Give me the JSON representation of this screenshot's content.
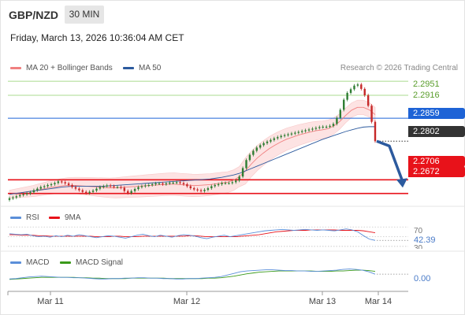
{
  "header": {
    "symbol": "GBP/NZD",
    "interval": "30 MIN",
    "datetime": "Friday, March 13, 2026 10:36:04 AM CET"
  },
  "legend": {
    "ma20_label": "MA 20 + Bollinger Bands",
    "ma50_label": "MA 50",
    "credit": "Research © 2026 Trading Central"
  },
  "colors": {
    "ma20": "#f08080",
    "ma50": "#2c5a9e",
    "bands": "#fde3e3",
    "candle_up": "#2e7d32",
    "candle_down": "#c62828",
    "resistance": "#8fcf6a",
    "pivot": "#1e63d6",
    "support": "#e8121a",
    "rsi": "#5b8fd9",
    "rsi_ma": "#e8121a",
    "macd": "#5b8fd9",
    "macd_signal": "#3a9a1a"
  },
  "levels": {
    "r2": "2.2951",
    "r1": "2.2916",
    "pivot": "2.2859",
    "last": "2.2802",
    "s1": "2.2706",
    "s2": "2.2672"
  },
  "rsi": {
    "label": "RSI",
    "ma_label": "9MA",
    "overbought": "70",
    "value": "42.39",
    "oversold": "30"
  },
  "macd": {
    "label": "MACD",
    "signal_label": "MACD Signal",
    "value": "0.00"
  },
  "xaxis": [
    "Mar 11",
    "Mar 12",
    "Mar 13",
    "Mar 14"
  ],
  "chart_data": {
    "type": "candlestick",
    "price_range": [
      2.264,
      2.2965
    ],
    "closes": [
      2.266,
      2.2662,
      2.2665,
      2.2668,
      2.267,
      2.2672,
      2.2675,
      2.268,
      2.2684,
      2.2688,
      2.269,
      2.2693,
      2.2695,
      2.2698,
      2.2702,
      2.27,
      2.2697,
      2.2693,
      2.2688,
      2.2684,
      2.268,
      2.2676,
      2.2673,
      2.2676,
      2.2679,
      2.2684,
      2.2688,
      2.269,
      2.2692,
      2.269,
      2.2688,
      2.2688,
      2.2686,
      2.2678,
      2.2673,
      2.2678,
      2.2683,
      2.2688,
      2.269,
      2.2692,
      2.2693,
      2.2695,
      2.2697,
      2.2697,
      2.2695,
      2.2697,
      2.2699,
      2.2699,
      2.27,
      2.2698,
      2.2695,
      2.269,
      2.2685,
      2.2682,
      2.268,
      2.2678,
      2.2681,
      2.2685,
      2.269,
      2.2693,
      2.2695,
      2.2698,
      2.2698,
      2.2698,
      2.27,
      2.2704,
      2.2714,
      2.2735,
      2.2755,
      2.2768,
      2.2778,
      2.2786,
      2.2792,
      2.2797,
      2.2801,
      2.2805,
      2.2809,
      2.2812,
      2.2815,
      2.2817,
      2.2819,
      2.2821,
      2.2823,
      2.2825,
      2.2827,
      2.2829,
      2.2831,
      2.2833,
      2.2835,
      2.2837,
      2.2838,
      2.2838,
      2.284,
      2.2845,
      2.286,
      2.288,
      2.2905,
      2.2922,
      2.2931,
      2.294,
      2.2943,
      2.2932,
      2.2916,
      2.289,
      2.285,
      2.2802
    ],
    "projection": [
      2.2802,
      2.279,
      2.2706
    ],
    "ma20": [
      2.267,
      2.2672,
      2.2674,
      2.2676,
      2.2678,
      2.2681,
      2.2684,
      2.2687,
      2.2689,
      2.2691,
      2.2692,
      2.2692,
      2.2691,
      2.269,
      2.2689,
      2.2688,
      2.2687,
      2.2686,
      2.2686,
      2.2687,
      2.2688,
      2.2689,
      2.269,
      2.2691,
      2.2692,
      2.2693,
      2.2694,
      2.2695,
      2.2695,
      2.2694,
      2.2693,
      2.2692,
      2.2692,
      2.2693,
      2.2694,
      2.2696,
      2.2698,
      2.27,
      2.2705,
      2.2714,
      2.2728,
      2.2745,
      2.276,
      2.2772,
      2.2783,
      2.2792,
      2.28,
      2.2807,
      2.2812,
      2.2817,
      2.2821,
      2.2825,
      2.2828,
      2.283,
      2.2833,
      2.284,
      2.2851,
      2.2866,
      2.2879,
      2.2886,
      2.2886,
      2.288,
      2.2868
    ],
    "ma50": [
      2.267,
      2.2672,
      2.2674,
      2.2676,
      2.2678,
      2.268,
      2.2682,
      2.2684,
      2.2686,
      2.2688,
      2.2689,
      2.269,
      2.269,
      2.269,
      2.269,
      2.269,
      2.269,
      2.2691,
      2.2692,
      2.2693,
      2.2694,
      2.2695,
      2.2696,
      2.2697,
      2.2698,
      2.2699,
      2.27,
      2.2701,
      2.2702,
      2.2703,
      2.2704,
      2.2705,
      2.2706,
      2.2707,
      2.2708,
      2.271,
      2.2712,
      2.2715,
      2.2718,
      2.2722,
      2.2728,
      2.2734,
      2.274,
      2.2746,
      2.2752,
      2.2758,
      2.2764,
      2.277,
      2.2776,
      2.2782,
      2.2788,
      2.2794,
      2.28,
      2.2806,
      2.2811,
      2.2816,
      2.2821,
      2.2826,
      2.283,
      2.2834,
      2.2837,
      2.2838,
      2.2838
    ],
    "rsi_range": [
      25,
      80
    ],
    "rsi": [
      56,
      55,
      54,
      55,
      52,
      50,
      51,
      49,
      52,
      50,
      53,
      51,
      54,
      52,
      50,
      48,
      50,
      52,
      51,
      49,
      47,
      50,
      53,
      55,
      52,
      50,
      53,
      51,
      49,
      52,
      54,
      53,
      51,
      48,
      46,
      49,
      51,
      53,
      50,
      52,
      54,
      56,
      58,
      60,
      62,
      63,
      64,
      65,
      64,
      63,
      64,
      65,
      64,
      63,
      64,
      63,
      62,
      64,
      66,
      64,
      60,
      52,
      45,
      42.39
    ],
    "rsi_ma": [
      54,
      54,
      53,
      53,
      53,
      52,
      52,
      51,
      51,
      51,
      51,
      51,
      51,
      51,
      51,
      50,
      50,
      50,
      51,
      51,
      50,
      50,
      50,
      51,
      51,
      51,
      51,
      51,
      51,
      51,
      51,
      52,
      52,
      51,
      50,
      50,
      50,
      50,
      50,
      50,
      51,
      52,
      53,
      54,
      56,
      58,
      60,
      61,
      62,
      63,
      63,
      63,
      64,
      64,
      64,
      64,
      64,
      63,
      63,
      63,
      63,
      62,
      60,
      58
    ],
    "macd_range": [
      -0.0025,
      0.003
    ],
    "macd": [
      0.0002,
      0.0003,
      0.0005,
      0.0007,
      0.0008,
      0.0009,
      0.0008,
      0.0007,
      0.0006,
      0.0006,
      0.0005,
      0.0005,
      0.0004,
      0.0003,
      0.0002,
      0.0002,
      0.0003,
      0.0003,
      0.0004,
      0.0004,
      0.0005,
      0.0005,
      0.0004,
      0.0004,
      0.0003,
      0.0003,
      0.0002,
      0.0002,
      0.0003,
      0.0003,
      0.0004,
      0.0005,
      0.0006,
      0.0008,
      0.0012,
      0.0016,
      0.002,
      0.0022,
      0.0023,
      0.0024,
      0.0025,
      0.0025,
      0.0024,
      0.0023,
      0.0023,
      0.0022,
      0.0022,
      0.0021,
      0.0021,
      0.0022,
      0.0023,
      0.0024,
      0.0026,
      0.0027,
      0.0026,
      0.0024,
      0.002,
      0.0014
    ],
    "macd_signal": [
      0.0001,
      0.0002,
      0.0003,
      0.0004,
      0.0005,
      0.0006,
      0.0006,
      0.0006,
      0.0006,
      0.0006,
      0.0006,
      0.0005,
      0.0005,
      0.0004,
      0.0004,
      0.0003,
      0.0003,
      0.0003,
      0.0003,
      0.0004,
      0.0004,
      0.0004,
      0.0004,
      0.0004,
      0.0004,
      0.0003,
      0.0003,
      0.0003,
      0.0003,
      0.0003,
      0.0003,
      0.0004,
      0.0004,
      0.0005,
      0.0007,
      0.0009,
      0.0012,
      0.0015,
      0.0017,
      0.0019,
      0.002,
      0.0021,
      0.0022,
      0.0022,
      0.0022,
      0.0022,
      0.0022,
      0.0022,
      0.0021,
      0.0021,
      0.0021,
      0.0022,
      0.0022,
      0.0023,
      0.0024,
      0.0024,
      0.0023,
      0.0021
    ]
  }
}
